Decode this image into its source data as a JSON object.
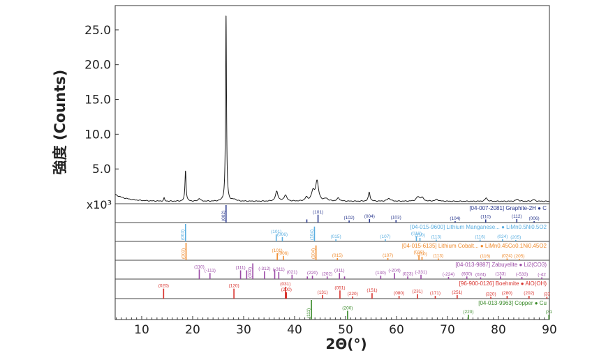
{
  "chart_data": {
    "type": "line",
    "xlabel": "2Θ(°)",
    "ylabel": "強度 (Counts)",
    "scale_label": "x10³",
    "xlim": [
      4.8,
      90
    ],
    "ylim": [
      0,
      28.5
    ],
    "x_ticks": [
      10,
      20,
      30,
      40,
      50,
      60,
      70,
      80,
      90
    ],
    "x_tick_labels": [
      "10",
      "20",
      "30",
      "40",
      "50",
      "60",
      "70",
      "80",
      "90"
    ],
    "y_ticks": [
      5,
      10,
      15,
      20,
      25
    ],
    "y_tick_labels": [
      "5.0",
      "10.0",
      "15.0",
      "20.0",
      "25.0"
    ],
    "grid": false,
    "series": [
      {
        "color": "#1a1a1a",
        "peaks": [
          {
            "x": 14.4,
            "h": 0.45,
            "w": 0.12
          },
          {
            "x": 18.6,
            "h": 4.4,
            "w": 0.13
          },
          {
            "x": 21.3,
            "h": 0.4,
            "w": 0.25
          },
          {
            "x": 26.55,
            "h": 26.8,
            "w": 0.11
          },
          {
            "x": 28.2,
            "h": 0.25,
            "w": 0.4
          },
          {
            "x": 36.5,
            "h": 1.4,
            "w": 0.3
          },
          {
            "x": 38.2,
            "h": 0.9,
            "w": 0.3
          },
          {
            "x": 42.3,
            "h": 0.5,
            "w": 0.3
          },
          {
            "x": 43.6,
            "h": 1.3,
            "w": 0.35
          },
          {
            "x": 44.4,
            "h": 2.8,
            "w": 0.35
          },
          {
            "x": 46.2,
            "h": 0.35,
            "w": 0.4
          },
          {
            "x": 48.6,
            "h": 0.45,
            "w": 0.3
          },
          {
            "x": 54.65,
            "h": 1.3,
            "w": 0.2
          },
          {
            "x": 58.5,
            "h": 0.4,
            "w": 0.4
          },
          {
            "x": 64.2,
            "h": 0.6,
            "w": 0.4
          },
          {
            "x": 65.0,
            "h": 0.5,
            "w": 0.35
          },
          {
            "x": 67.9,
            "h": 0.25,
            "w": 0.4
          },
          {
            "x": 77.6,
            "h": 0.5,
            "w": 0.25
          },
          {
            "x": 83.7,
            "h": 0.3,
            "w": 0.3
          },
          {
            "x": 86.9,
            "h": 0.25,
            "w": 0.3
          }
        ]
      }
    ],
    "reference_patterns": [
      {
        "label": "[04-007-2081] Graphite-2H ● C",
        "color": "#2b3a8f",
        "lines": [
          {
            "x": 26.55,
            "h": 1.0,
            "hkl": "(002)"
          },
          {
            "x": 42.4,
            "h": 0.18
          },
          {
            "x": 44.6,
            "h": 0.45,
            "hkl": "(101)"
          },
          {
            "x": 50.7,
            "h": 0.12,
            "hkl": "(102)"
          },
          {
            "x": 54.7,
            "h": 0.2,
            "hkl": "(004)"
          },
          {
            "x": 59.9,
            "h": 0.15,
            "hkl": "(103)"
          },
          {
            "x": 71.5,
            "h": 0.08,
            "hkl": "(104)"
          },
          {
            "x": 77.5,
            "h": 0.18,
            "hkl": "(110)"
          },
          {
            "x": 83.6,
            "h": 0.2,
            "hkl": "(112)"
          },
          {
            "x": 87.0,
            "h": 0.08,
            "hkl": "(006)"
          }
        ]
      },
      {
        "label": "[04-015-9600] Lithium Manganese... ● LiMn0.5Ni0.5O2",
        "color": "#5aaee0",
        "lines": [
          {
            "x": 18.6,
            "h": 1.0,
            "hkl": "(003)"
          },
          {
            "x": 36.4,
            "h": 0.4,
            "hkl": "(101)"
          },
          {
            "x": 37.6,
            "h": 0.25,
            "hkl": "(006)"
          },
          {
            "x": 43.9,
            "h": 0.85,
            "hkl": "(104)"
          },
          {
            "x": 48.1,
            "h": 0.12,
            "hkl": "(015)"
          },
          {
            "x": 57.8,
            "h": 0.12,
            "hkl": "(107)"
          },
          {
            "x": 63.9,
            "h": 0.3,
            "hkl": "(018)"
          },
          {
            "x": 64.6,
            "h": 0.2,
            "hkl": "(110)"
          },
          {
            "x": 67.8,
            "h": 0.1,
            "hkl": "(113)"
          },
          {
            "x": 76.4,
            "h": 0.1,
            "hkl": "(116)"
          },
          {
            "x": 80.8,
            "h": 0.12,
            "hkl": "(024)"
          },
          {
            "x": 83.4,
            "h": 0.08,
            "hkl": "(205)"
          }
        ]
      },
      {
        "label": "[04-015-6135] Lithium Cobalt... ● LiMn0.45Co0.1Ni0.45O2",
        "color": "#ef8a2c",
        "lines": [
          {
            "x": 18.7,
            "h": 1.0,
            "hkl": "(003)"
          },
          {
            "x": 36.6,
            "h": 0.4,
            "hkl": "(101)"
          },
          {
            "x": 37.8,
            "h": 0.25,
            "hkl": "(006)"
          },
          {
            "x": 44.2,
            "h": 0.85,
            "hkl": "(104)"
          },
          {
            "x": 48.4,
            "h": 0.12,
            "hkl": "(015)"
          },
          {
            "x": 58.3,
            "h": 0.12,
            "hkl": "(107)"
          },
          {
            "x": 64.4,
            "h": 0.3,
            "hkl": "(018)"
          },
          {
            "x": 65.0,
            "h": 0.2,
            "hkl": "(110)"
          },
          {
            "x": 68.2,
            "h": 0.1,
            "hkl": "(113)"
          },
          {
            "x": 77.4,
            "h": 0.08,
            "hkl": "(116)"
          },
          {
            "x": 81.7,
            "h": 0.1,
            "hkl": "(024)"
          },
          {
            "x": 84.1,
            "h": 0.08,
            "hkl": "(205)"
          }
        ]
      },
      {
        "label": "[04-013-9887] Zabuyelite ● Li2(CO3)",
        "color": "#9b4aa6",
        "lines": [
          {
            "x": 21.3,
            "h": 0.55,
            "hkl": "(110)"
          },
          {
            "x": 23.4,
            "h": 0.35,
            "hkl": "(-111)"
          },
          {
            "x": 29.4,
            "h": 0.5,
            "hkl": "(111)"
          },
          {
            "x": 30.6,
            "h": 0.5
          },
          {
            "x": 31.8,
            "h": 0.9,
            "hkl": "(002)"
          },
          {
            "x": 34.1,
            "h": 0.45,
            "hkl": "(-312)"
          },
          {
            "x": 36.1,
            "h": 0.55
          },
          {
            "x": 36.9,
            "h": 0.4,
            "hkl": "(-311)"
          },
          {
            "x": 39.5,
            "h": 0.25,
            "hkl": "(021)"
          },
          {
            "x": 42.5,
            "h": 0.15
          },
          {
            "x": 43.5,
            "h": 0.2,
            "hkl": "(220)"
          },
          {
            "x": 46.4,
            "h": 0.15,
            "hkl": "(202)"
          },
          {
            "x": 48.8,
            "h": 0.35,
            "hkl": "(311)"
          },
          {
            "x": 49.8,
            "h": 0.15
          },
          {
            "x": 56.9,
            "h": 0.2,
            "hkl": "(130)"
          },
          {
            "x": 59.6,
            "h": 0.35,
            "hkl": "(-204)"
          },
          {
            "x": 62.2,
            "h": 0.15,
            "hkl": "(023)"
          },
          {
            "x": 64.8,
            "h": 0.25,
            "hkl": "(-331)"
          },
          {
            "x": 70.2,
            "h": 0.12,
            "hkl": "(-224)"
          },
          {
            "x": 73.8,
            "h": 0.15,
            "hkl": "(600)"
          },
          {
            "x": 76.5,
            "h": 0.1,
            "hkl": "(024)"
          },
          {
            "x": 80.4,
            "h": 0.15,
            "hkl": "(133)"
          },
          {
            "x": 84.6,
            "h": 0.12,
            "hkl": "(-533)"
          },
          {
            "x": 88.5,
            "h": 0.1,
            "hkl": "(-42"
          }
        ]
      },
      {
        "label": "[96-900-0126] Boehmite ● AlO(OH)",
        "color": "#d8302b",
        "lines": [
          {
            "x": 14.3,
            "h": 0.55,
            "hkl": "(020)"
          },
          {
            "x": 28.1,
            "h": 0.55,
            "hkl": "(120)"
          },
          {
            "x": 38.2,
            "h": 0.65,
            "hkl": "(031)"
          },
          {
            "x": 38.4,
            "h": 0.35,
            "hkl": "(200)"
          },
          {
            "x": 45.5,
            "h": 0.2,
            "hkl": "(131)"
          },
          {
            "x": 48.9,
            "h": 0.45,
            "hkl": "(051)"
          },
          {
            "x": 51.4,
            "h": 0.12,
            "hkl": "(220)"
          },
          {
            "x": 55.2,
            "h": 0.3,
            "hkl": "(151)"
          },
          {
            "x": 60.5,
            "h": 0.15,
            "hkl": "(080)"
          },
          {
            "x": 64.1,
            "h": 0.25,
            "hkl": "(231)"
          },
          {
            "x": 67.6,
            "h": 0.15,
            "hkl": "(171)"
          },
          {
            "x": 71.9,
            "h": 0.2,
            "hkl": "(251)"
          },
          {
            "x": 78.5,
            "h": 0.1,
            "hkl": "(320)"
          },
          {
            "x": 81.7,
            "h": 0.15,
            "hkl": "(280)"
          },
          {
            "x": 86.0,
            "h": 0.15,
            "hkl": "(202)"
          },
          {
            "x": 89.5,
            "h": 0.1,
            "hkl": "(33"
          }
        ]
      },
      {
        "label": "[04-013-9963] Copper ● Cu",
        "color": "#3a8a2a",
        "lines": [
          {
            "x": 43.3,
            "h": 1.0,
            "hkl": "(111)"
          },
          {
            "x": 50.4,
            "h": 0.45,
            "hkl": "(200)"
          },
          {
            "x": 74.1,
            "h": 0.25,
            "hkl": "(220)"
          },
          {
            "x": 89.9,
            "h": 0.25,
            "hkl": "(31"
          }
        ]
      }
    ]
  }
}
